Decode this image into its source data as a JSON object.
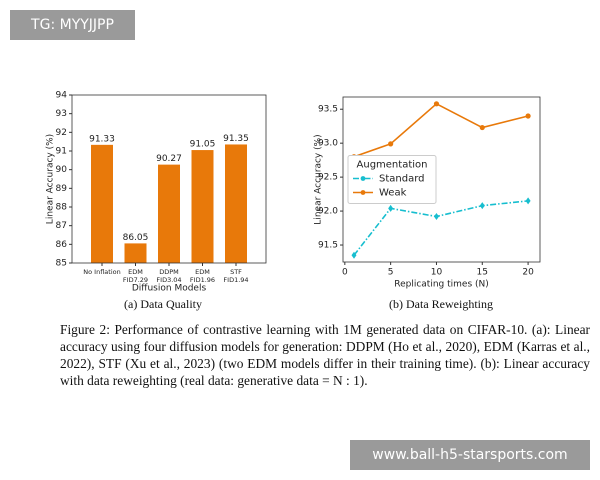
{
  "chart_data": [
    {
      "type": "bar",
      "ylabel": "Linear Accuracy (%)",
      "xlabel": "Diffusion Models",
      "caption": "(a) Data Quality",
      "categories": [
        [
          "No Inflation"
        ],
        [
          "EDM",
          "FID7.29"
        ],
        [
          "DDPM",
          "FID3.04"
        ],
        [
          "EDM",
          "FID1.96"
        ],
        [
          "STF",
          "FID1.94"
        ]
      ],
      "values": [
        91.33,
        86.05,
        90.27,
        91.05,
        91.35
      ],
      "color": "#e8790a",
      "ylim": [
        85,
        94
      ],
      "yticks": [
        85,
        86,
        87,
        88,
        89,
        90,
        91,
        92,
        93,
        94
      ],
      "grid": false
    },
    {
      "type": "line",
      "ylabel": "Linear Accuracy (%)",
      "xlabel": "Replicating times (N)",
      "caption": "(b) Data Reweighting",
      "x": [
        1,
        5,
        10,
        15,
        20
      ],
      "series": [
        {
          "name": "Standard",
          "color": "#17becf",
          "dash": "dashdot",
          "marker": "diamond",
          "values": [
            91.35,
            92.04,
            91.92,
            92.08,
            92.15
          ]
        },
        {
          "name": "Weak",
          "color": "#e8790a",
          "dash": "solid",
          "marker": "circle",
          "values": [
            92.8,
            92.99,
            93.58,
            93.23,
            93.4
          ]
        }
      ],
      "legend_title": "Augmentation",
      "legend": "center left",
      "xlim": [
        -0.2,
        21.3
      ],
      "xticks": [
        0,
        5,
        10,
        15,
        20
      ],
      "ylim": [
        91.25,
        93.68
      ],
      "yticks": [
        91.5,
        {
          "value": 92,
          "label": "92.0"
        },
        92.5,
        {
          "value": 93,
          "label": "93.0"
        },
        93.5
      ],
      "grid": false
    }
  ],
  "figure_caption": "Figure 2: Performance of contrastive learning with 1M generated data on CIFAR-10. (a): Linear accuracy using four diffusion models for generation: DDPM (Ho et al., 2020), EDM (Karras et al., 2022), STF (Xu et al., 2023) (two EDM models differ in their training time). (b): Linear accuracy with data reweighting (real data: generative data = N : 1).",
  "overlays": {
    "top_left": "TG: MYYJJPP",
    "bottom_right": "www.ball-h5-starsports.com"
  }
}
